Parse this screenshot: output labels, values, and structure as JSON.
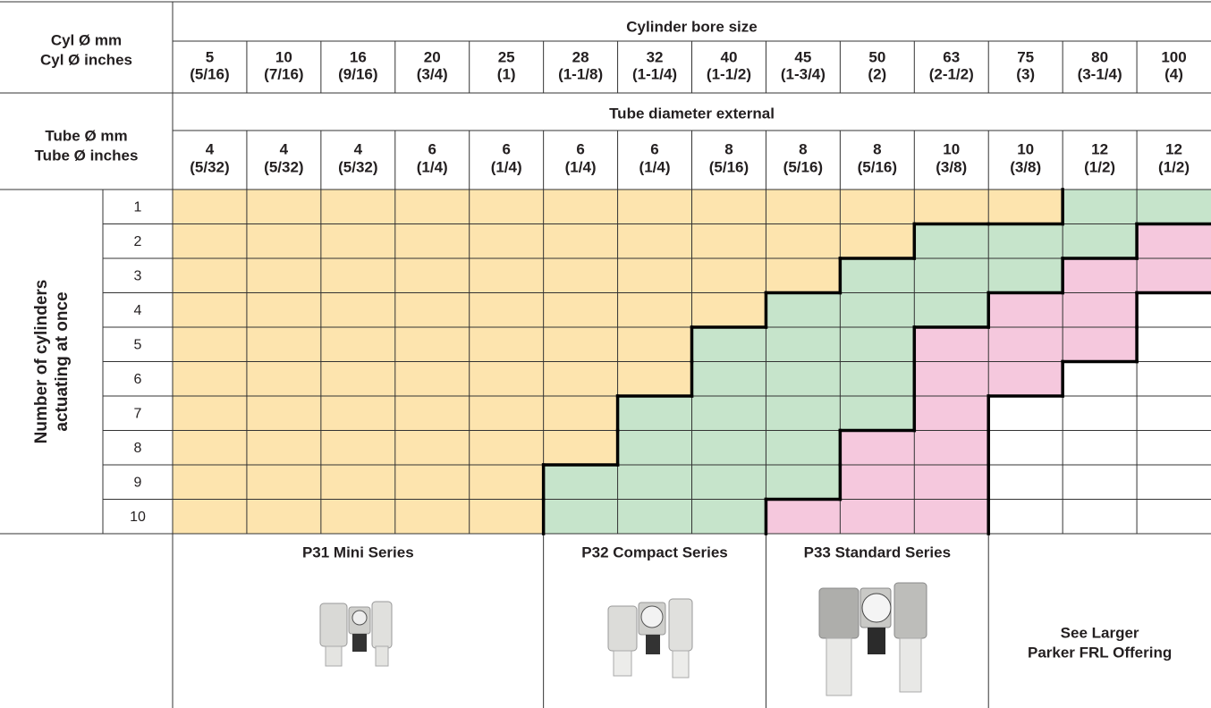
{
  "header": {
    "cyl_label": [
      "Cyl Ø mm",
      "Cyl Ø inches"
    ],
    "bore_title": "Cylinder bore size",
    "bore_mm": [
      "5",
      "10",
      "16",
      "20",
      "25",
      "28",
      "32",
      "40",
      "45",
      "50",
      "63",
      "75",
      "80",
      "100"
    ],
    "bore_in": [
      "(5/16)",
      "(7/16)",
      "(9/16)",
      "(3/4)",
      "(1)",
      "(1-1/8)",
      "(1-1/4)",
      "(1-1/2)",
      "(1-3/4)",
      "(2)",
      "(2-1/2)",
      "(3)",
      "(3-1/4)",
      "(4)"
    ],
    "tube_label": [
      "Tube Ø mm",
      "Tube Ø inches"
    ],
    "tube_title": "Tube diameter external",
    "tube_mm": [
      "4",
      "4",
      "4",
      "6",
      "6",
      "6",
      "6",
      "8",
      "8",
      "8",
      "10",
      "10",
      "12",
      "12"
    ],
    "tube_in": [
      "(5/32)",
      "(5/32)",
      "(5/32)",
      "(1/4)",
      "(1/4)",
      "(1/4)",
      "(1/4)",
      "(5/16)",
      "(5/16)",
      "(5/16)",
      "(3/8)",
      "(3/8)",
      "(1/2)",
      "(1/2)"
    ]
  },
  "grid": {
    "row_axis_label": [
      "Number of cylinders",
      "actuating at once"
    ],
    "rows": [
      {
        "label": "1",
        "fills": [
          "#fde4ae",
          "#fde4ae",
          "#fde4ae",
          "#fde4ae",
          "#fde4ae",
          "#fde4ae",
          "#fde4ae",
          "#fde4ae",
          "#fde4ae",
          "#fde4ae",
          "#fde4ae",
          "#fde4ae",
          "#c6e4cb",
          "#c6e4cb"
        ]
      },
      {
        "label": "2",
        "fills": [
          "#fde4ae",
          "#fde4ae",
          "#fde4ae",
          "#fde4ae",
          "#fde4ae",
          "#fde4ae",
          "#fde4ae",
          "#fde4ae",
          "#fde4ae",
          "#fde4ae",
          "#c6e4cb",
          "#c6e4cb",
          "#c6e4cb",
          "#f5c8dd"
        ]
      },
      {
        "label": "3",
        "fills": [
          "#fde4ae",
          "#fde4ae",
          "#fde4ae",
          "#fde4ae",
          "#fde4ae",
          "#fde4ae",
          "#fde4ae",
          "#fde4ae",
          "#fde4ae",
          "#c6e4cb",
          "#c6e4cb",
          "#c6e4cb",
          "#f5c8dd",
          "#f5c8dd"
        ]
      },
      {
        "label": "4",
        "fills": [
          "#fde4ae",
          "#fde4ae",
          "#fde4ae",
          "#fde4ae",
          "#fde4ae",
          "#fde4ae",
          "#fde4ae",
          "#fde4ae",
          "#c6e4cb",
          "#c6e4cb",
          "#c6e4cb",
          "#f5c8dd",
          "#f5c8dd",
          "#ffffff"
        ]
      },
      {
        "label": "5",
        "fills": [
          "#fde4ae",
          "#fde4ae",
          "#fde4ae",
          "#fde4ae",
          "#fde4ae",
          "#fde4ae",
          "#fde4ae",
          "#c6e4cb",
          "#c6e4cb",
          "#c6e4cb",
          "#f5c8dd",
          "#f5c8dd",
          "#f5c8dd",
          "#ffffff"
        ]
      },
      {
        "label": "6",
        "fills": [
          "#fde4ae",
          "#fde4ae",
          "#fde4ae",
          "#fde4ae",
          "#fde4ae",
          "#fde4ae",
          "#fde4ae",
          "#c6e4cb",
          "#c6e4cb",
          "#c6e4cb",
          "#f5c8dd",
          "#f5c8dd",
          "#ffffff",
          "#ffffff"
        ]
      },
      {
        "label": "7",
        "fills": [
          "#fde4ae",
          "#fde4ae",
          "#fde4ae",
          "#fde4ae",
          "#fde4ae",
          "#fde4ae",
          "#c6e4cb",
          "#c6e4cb",
          "#c6e4cb",
          "#c6e4cb",
          "#f5c8dd",
          "#ffffff",
          "#ffffff",
          "#ffffff"
        ]
      },
      {
        "label": "8",
        "fills": [
          "#fde4ae",
          "#fde4ae",
          "#fde4ae",
          "#fde4ae",
          "#fde4ae",
          "#fde4ae",
          "#c6e4cb",
          "#c6e4cb",
          "#c6e4cb",
          "#f5c8dd",
          "#f5c8dd",
          "#ffffff",
          "#ffffff",
          "#ffffff"
        ]
      },
      {
        "label": "9",
        "fills": [
          "#fde4ae",
          "#fde4ae",
          "#fde4ae",
          "#fde4ae",
          "#fde4ae",
          "#c6e4cb",
          "#c6e4cb",
          "#c6e4cb",
          "#c6e4cb",
          "#f5c8dd",
          "#f5c8dd",
          "#ffffff",
          "#ffffff",
          "#ffffff"
        ]
      },
      {
        "label": "10",
        "fills": [
          "#fde4ae",
          "#fde4ae",
          "#fde4ae",
          "#fde4ae",
          "#fde4ae",
          "#c6e4cb",
          "#c6e4cb",
          "#c6e4cb",
          "#f5c8dd",
          "#f5c8dd",
          "#f5c8dd",
          "#ffffff",
          "#ffffff",
          "#ffffff"
        ]
      }
    ]
  },
  "footer": {
    "series": [
      "P31 Mini Series",
      "P32 Compact Series",
      "P33 Standard Series"
    ],
    "see_larger": [
      "See Larger",
      "Parker FRL Offering"
    ]
  }
}
